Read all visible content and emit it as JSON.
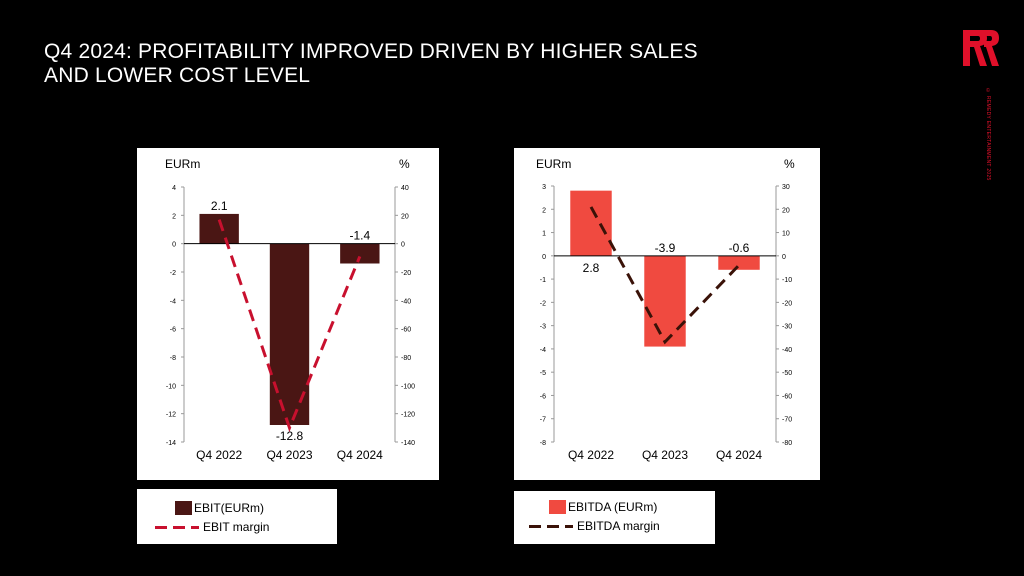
{
  "slide": {
    "title_line1": "Q4 2024: PROFITABILITY IMPROVED DRIVEN BY HIGHER SALES",
    "title_line2": "AND LOWER COST LEVEL",
    "logo_text": "R",
    "copyright": "© REMEDY ENTERTAINMENT 2025"
  },
  "colors": {
    "ebit_bar": "#4a1614",
    "ebit_line": "#c8102e",
    "ebitda_bar": "#f04a40",
    "ebitda_line": "#3a1208"
  },
  "chart_data": [
    {
      "type": "bar",
      "categories": [
        "Q4 2022",
        "Q4 2023",
        "Q4 2024"
      ],
      "series": [
        {
          "name": "EBIT(EURm)",
          "values": [
            2.1,
            -12.8,
            -1.4
          ],
          "labels": [
            "2.1",
            "-12.8",
            "-1.4"
          ],
          "axis": "left"
        },
        {
          "name": "EBIT margin",
          "type": "line",
          "values": [
            17,
            -130,
            -9
          ],
          "axis": "right"
        }
      ],
      "ylabel": "EURm",
      "y2label": "%",
      "ylim": [
        -14,
        4
      ],
      "ystep": 2,
      "y2lim": [
        -140,
        40
      ],
      "y2step": 20,
      "left_ticks": [
        "4",
        "2",
        "0",
        "-2",
        "-4",
        "-6",
        "-8",
        "-10",
        "-12",
        "-14"
      ],
      "right_ticks": [
        "40",
        "20",
        "0",
        "-20",
        "-40",
        "-60",
        "-80",
        "-100",
        "-120",
        "-140"
      ],
      "grid": false,
      "legend": "bottom"
    },
    {
      "type": "bar",
      "categories": [
        "Q4 2022",
        "Q4 2023",
        "Q4 2024"
      ],
      "series": [
        {
          "name": "EBITDA (EURm)",
          "values": [
            2.8,
            -3.9,
            -0.6
          ],
          "labels": [
            "2.8",
            "-3.9",
            "-0.6"
          ],
          "axis": "left"
        },
        {
          "name": "EBITDA margin",
          "type": "line",
          "values": [
            21,
            -37,
            -4
          ],
          "axis": "right"
        }
      ],
      "ylabel": "EURm",
      "y2label": "%",
      "ylim": [
        -8,
        3
      ],
      "ystep": 1,
      "y2lim": [
        -80,
        30
      ],
      "y2step": 10,
      "left_ticks": [
        "3",
        "2",
        "1",
        "0",
        "-1",
        "-2",
        "-3",
        "-4",
        "-5",
        "-6",
        "-7",
        "-8"
      ],
      "right_ticks": [
        "30",
        "20",
        "10",
        "0",
        "-10",
        "-20",
        "-30",
        "-40",
        "-50",
        "-60",
        "-70",
        "-80"
      ],
      "grid": false,
      "legend": "bottom"
    }
  ]
}
